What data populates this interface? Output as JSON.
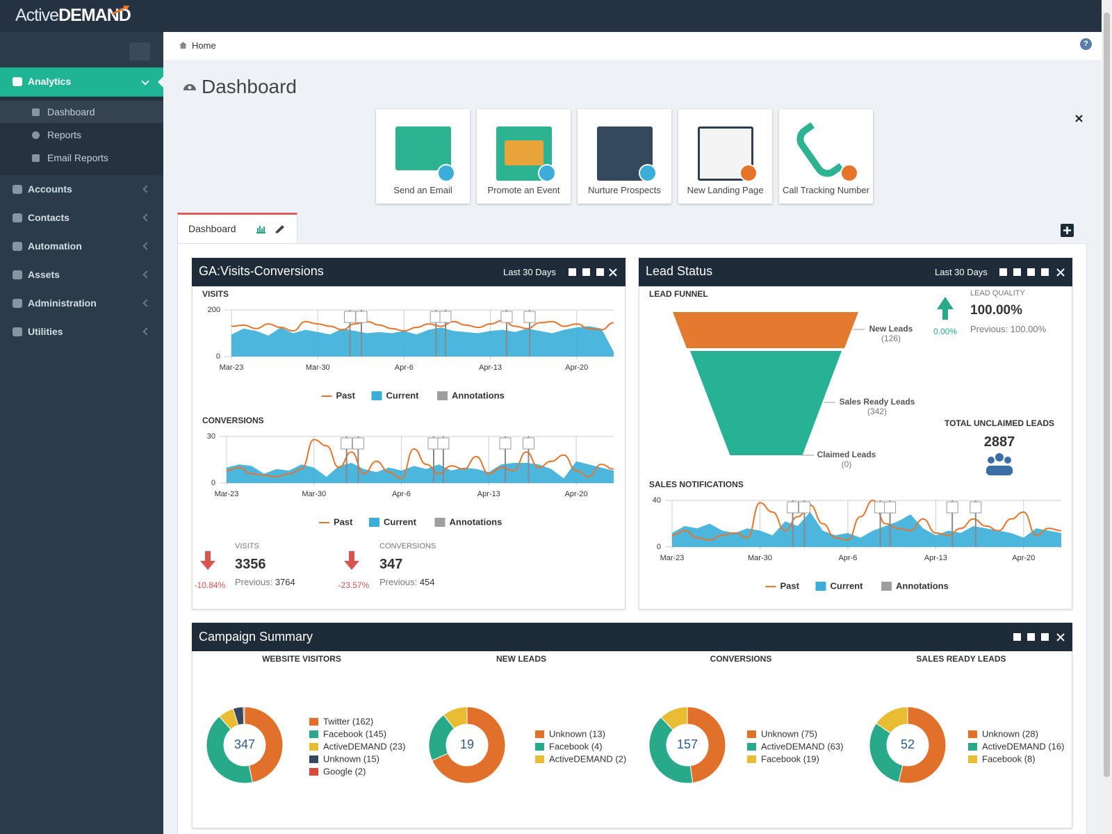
{
  "brand": {
    "light": "Active",
    "bold": "DEMAND"
  },
  "sidebar": {
    "items": [
      {
        "label": "Analytics",
        "children": [
          "Dashboard",
          "Reports",
          "Email Reports"
        ]
      },
      {
        "label": "Accounts"
      },
      {
        "label": "Contacts"
      },
      {
        "label": "Automation"
      },
      {
        "label": "Assets"
      },
      {
        "label": "Administration"
      },
      {
        "label": "Utilities"
      }
    ]
  },
  "breadcrumb": "Home",
  "help": "?",
  "page_title": "Dashboard",
  "tiles": [
    "Send an Email",
    "Promote an Event",
    "Nurture Prospects",
    "New Landing Page",
    "Call Tracking Number"
  ],
  "tab": "Dashboard",
  "widgets": {
    "ga": {
      "title": "GA:Visits-Conversions",
      "range": "Last 30 Days",
      "stats": [
        {
          "label": "VISITS",
          "value": 3356,
          "change": "-10.84%",
          "previous_label": "Previous:",
          "previous": 3764
        },
        {
          "label": "CONVERSIONS",
          "value": 347,
          "change": "-23.57%",
          "previous_label": "Previous:",
          "previous": 454
        }
      ]
    },
    "lead": {
      "title": "Lead Status",
      "range": "Last 30 Days",
      "quality": {
        "label": "LEAD QUALITY",
        "value": "100.00%",
        "change": "0.00%",
        "previous": "Previous: 100.00%"
      },
      "unclaimed": {
        "label": "TOTAL UNCLAIMED LEADS",
        "value": 2887
      }
    },
    "campaign": {
      "title": "Campaign Summary"
    }
  },
  "chart_data": [
    {
      "type": "line",
      "title": "VISITS",
      "categories": [
        "Mar-23",
        null,
        null,
        null,
        null,
        null,
        null,
        "Mar-30",
        null,
        null,
        null,
        null,
        null,
        null,
        "Apr-6",
        null,
        null,
        null,
        null,
        null,
        null,
        "Apr-13",
        null,
        null,
        null,
        null,
        null,
        null,
        "Apr-20",
        null,
        null,
        null
      ],
      "series": [
        {
          "name": "Past",
          "color": "#e8742a",
          "values": [
            130,
            135,
            120,
            140,
            125,
            110,
            150,
            140,
            130,
            115,
            140,
            150,
            135,
            120,
            110,
            125,
            140,
            130,
            150,
            135,
            125,
            140,
            155,
            130,
            120,
            145,
            150,
            130,
            140,
            120,
            115,
            145
          ]
        },
        {
          "name": "Current",
          "color": "#3aaed8",
          "style": "area",
          "values": [
            95,
            120,
            110,
            90,
            125,
            100,
            115,
            105,
            95,
            120,
            110,
            100,
            105,
            100,
            110,
            95,
            115,
            125,
            110,
            105,
            100,
            110,
            115,
            105,
            120,
            110,
            100,
            115,
            125,
            130,
            120,
            20
          ]
        }
      ],
      "annotations": {
        "name": "Annotations",
        "color": "#9e9e9e"
      },
      "ylim": [
        0,
        200
      ],
      "yticks": [
        0,
        200
      ],
      "grid": true
    },
    {
      "type": "line",
      "title": "CONVERSIONS",
      "categories": [
        "Mar-23",
        null,
        null,
        null,
        null,
        null,
        null,
        "Mar-30",
        null,
        null,
        null,
        null,
        null,
        null,
        "Apr-6",
        null,
        null,
        null,
        null,
        null,
        null,
        "Apr-13",
        null,
        null,
        null,
        null,
        null,
        null,
        "Apr-20",
        null,
        null,
        null
      ],
      "series": [
        {
          "name": "Past",
          "color": "#e8742a",
          "values": [
            8,
            10,
            6,
            5,
            4,
            6,
            9,
            28,
            24,
            10,
            20,
            6,
            14,
            7,
            3,
            22,
            12,
            6,
            11,
            9,
            17,
            6,
            10,
            8,
            20,
            10,
            14,
            18,
            8,
            4,
            12,
            9
          ]
        },
        {
          "name": "Current",
          "color": "#3aaed8",
          "style": "area",
          "values": [
            10,
            12,
            11,
            6,
            9,
            8,
            12,
            10,
            4,
            11,
            13,
            9,
            7,
            10,
            8,
            11,
            9,
            12,
            8,
            10,
            9,
            7,
            12,
            13,
            13,
            12,
            9,
            3,
            14,
            12,
            10,
            8
          ]
        }
      ],
      "annotations": {
        "name": "Annotations",
        "color": "#9e9e9e"
      },
      "ylim": [
        0,
        30
      ],
      "yticks": [
        0,
        30
      ],
      "grid": true
    },
    {
      "type": "line",
      "title": "SALES NOTIFICATIONS",
      "categories": [
        "Mar-23",
        null,
        null,
        null,
        null,
        null,
        null,
        "Mar-30",
        null,
        null,
        null,
        null,
        null,
        null,
        "Apr-6",
        null,
        null,
        null,
        null,
        null,
        null,
        "Apr-13",
        null,
        null,
        null,
        null,
        null,
        null,
        "Apr-20",
        null,
        null,
        null
      ],
      "series": [
        {
          "name": "Past",
          "color": "#e8742a",
          "values": [
            10,
            14,
            8,
            6,
            10,
            12,
            8,
            38,
            30,
            14,
            26,
            36,
            20,
            8,
            6,
            26,
            40,
            20,
            16,
            14,
            24,
            12,
            10,
            16,
            24,
            18,
            14,
            24,
            30,
            10,
            16,
            14
          ]
        },
        {
          "name": "Current",
          "color": "#3aaed8",
          "style": "area",
          "values": [
            12,
            18,
            16,
            20,
            14,
            12,
            16,
            14,
            10,
            22,
            18,
            30,
            14,
            10,
            12,
            8,
            14,
            18,
            22,
            28,
            16,
            10,
            14,
            12,
            18,
            16,
            14,
            12,
            8,
            16,
            14,
            12
          ]
        }
      ],
      "annotations": {
        "name": "Annotations",
        "color": "#9e9e9e"
      },
      "ylim": [
        0,
        40
      ],
      "yticks": [
        0,
        40
      ],
      "grid": true
    },
    {
      "type": "funnel",
      "title": "LEAD FUNNEL",
      "categories": [
        "New Leads",
        "Sales Ready Leads",
        "Claimed Leads"
      ],
      "values": [
        126,
        342,
        0
      ],
      "value_labels": [
        "(126)",
        "(342)",
        "(0)"
      ],
      "colors": [
        "#e27a30",
        "#27b295",
        "#27b295"
      ]
    },
    {
      "type": "pie",
      "title": "WEBSITE VISITORS",
      "total": 347,
      "values": [
        162,
        145,
        23,
        15,
        2
      ],
      "value_labels": [
        "Twitter (162)",
        "Facebook (145)",
        "ActiveDEMAND (23)",
        "Unknown (15)",
        "Google (2)"
      ],
      "colors": [
        "#e0702a",
        "#27a98a",
        "#e8bd34",
        "#34495e",
        "#d9493a"
      ]
    },
    {
      "type": "pie",
      "title": "NEW LEADS",
      "total": 19,
      "values": [
        13,
        4,
        2
      ],
      "value_labels": [
        "Unknown (13)",
        "Facebook (4)",
        "ActiveDEMAND (2)"
      ],
      "colors": [
        "#e0702a",
        "#27a98a",
        "#e8bd34"
      ]
    },
    {
      "type": "pie",
      "title": "CONVERSIONS",
      "total": 157,
      "values": [
        75,
        63,
        19
      ],
      "value_labels": [
        "Unknown (75)",
        "ActiveDEMAND (63)",
        "Facebook (19)"
      ],
      "colors": [
        "#e0702a",
        "#27a98a",
        "#e8bd34"
      ]
    },
    {
      "type": "pie",
      "title": "SALES READY LEADS",
      "total": 52,
      "values": [
        28,
        16,
        8
      ],
      "value_labels": [
        "Unknown (28)",
        "ActiveDEMAND (16)",
        "Facebook (8)"
      ],
      "colors": [
        "#e0702a",
        "#27a98a",
        "#e8bd34"
      ]
    }
  ]
}
